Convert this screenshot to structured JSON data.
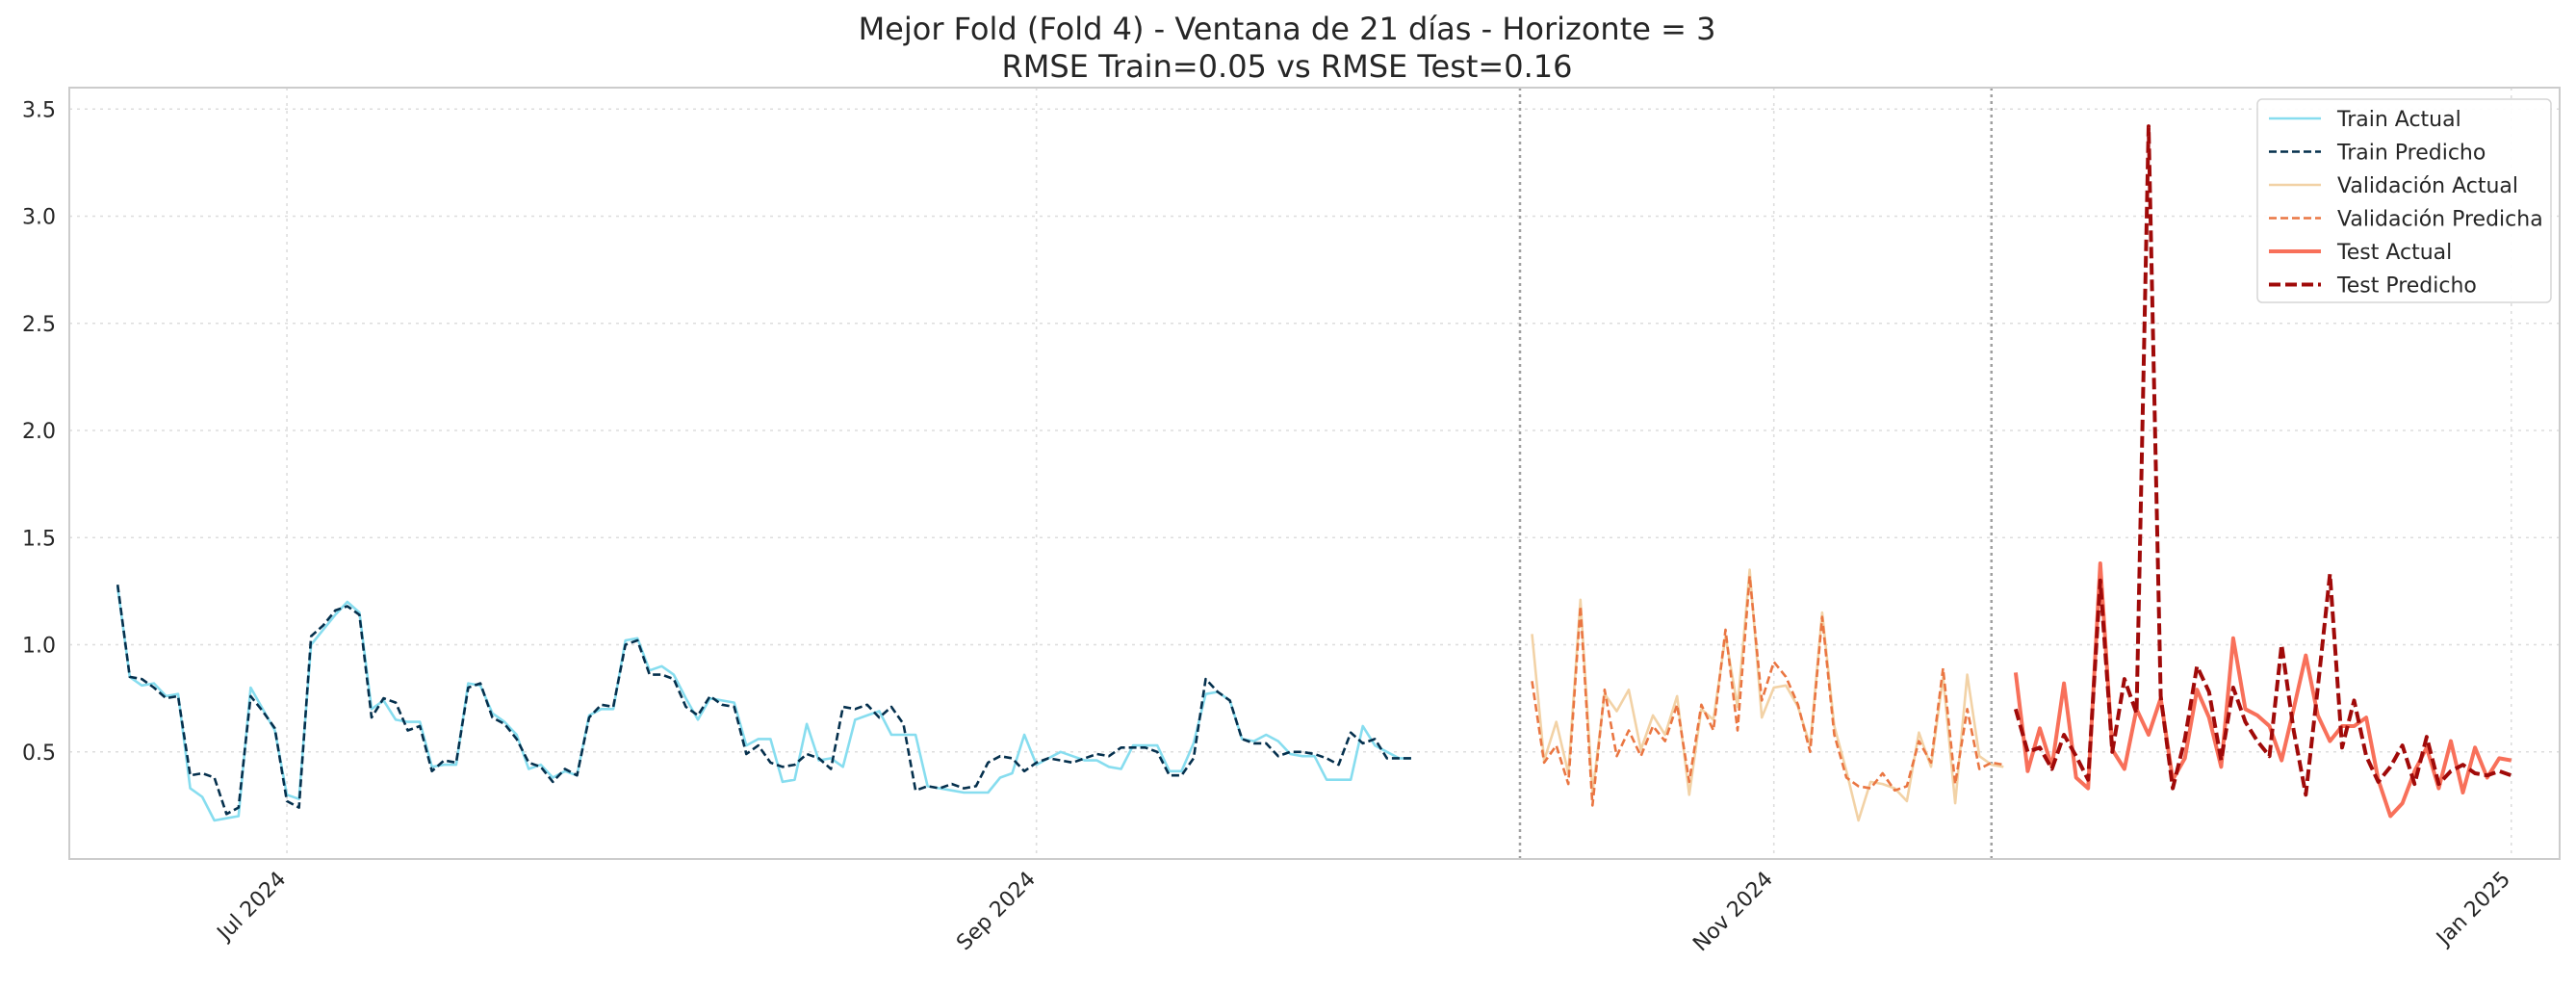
{
  "chart_data": {
    "type": "line",
    "title": "Mejor Fold (Fold 4) - Ventana de 21 días - Horizonte = 3",
    "subtitle": "RMSE Train=0.05 vs RMSE Test=0.16",
    "xlabel": "",
    "ylabel": "",
    "xlim": [
      "2024-06-13",
      "2025-01-05"
    ],
    "ylim": [
      0.0,
      3.6
    ],
    "grid": true,
    "legend_position": "top-right",
    "x_ticks": [
      {
        "date": "2024-07-01",
        "label": "Jul 2024"
      },
      {
        "date": "2024-09-01",
        "label": "Sep 2024"
      },
      {
        "date": "2024-11-01",
        "label": "Nov 2024"
      },
      {
        "date": "2025-01-01",
        "label": "Jan 2025"
      }
    ],
    "y_ticks": [
      {
        "value": 0.5,
        "label": "0.5"
      },
      {
        "value": 1.0,
        "label": "1.0"
      },
      {
        "value": 1.5,
        "label": "1.5"
      },
      {
        "value": 2.0,
        "label": "2.0"
      },
      {
        "value": 2.5,
        "label": "2.5"
      },
      {
        "value": 3.0,
        "label": "3.0"
      },
      {
        "value": 3.5,
        "label": "3.5"
      }
    ],
    "split_markers": [
      "2024-10-11",
      "2024-11-19"
    ],
    "series": [
      {
        "name": "Train Actual",
        "color": "#87ddef",
        "dash": "solid",
        "width": 2.6,
        "start_date": "2024-06-17",
        "values": [
          1.27,
          0.85,
          0.81,
          0.82,
          0.76,
          0.77,
          0.33,
          0.29,
          0.18,
          0.19,
          0.2,
          0.8,
          0.7,
          0.6,
          0.3,
          0.28,
          1.0,
          1.07,
          1.14,
          1.2,
          1.15,
          0.7,
          0.74,
          0.65,
          0.64,
          0.64,
          0.43,
          0.44,
          0.44,
          0.82,
          0.81,
          0.68,
          0.64,
          0.58,
          0.42,
          0.44,
          0.38,
          0.41,
          0.39,
          0.67,
          0.7,
          0.7,
          1.02,
          1.03,
          0.88,
          0.9,
          0.86,
          0.75,
          0.65,
          0.75,
          0.74,
          0.73,
          0.53,
          0.56,
          0.56,
          0.36,
          0.37,
          0.63,
          0.46,
          0.47,
          0.43,
          0.65,
          0.67,
          0.69,
          0.58,
          0.58,
          0.58,
          0.34,
          0.33,
          0.32,
          0.31,
          0.31,
          0.31,
          0.38,
          0.4,
          0.58,
          0.44,
          0.47,
          0.5,
          0.48,
          0.46,
          0.46,
          0.43,
          0.42,
          0.53,
          0.53,
          0.53,
          0.41,
          0.41,
          0.54,
          0.77,
          0.78,
          0.74,
          0.56,
          0.55,
          0.58,
          0.55,
          0.49,
          0.48,
          0.48,
          0.37,
          0.37,
          0.37,
          0.62,
          0.53,
          0.5,
          0.47,
          0.47
        ]
      },
      {
        "name": "Train Predicho",
        "color": "#05304d",
        "dash": "dashed",
        "width": 2.6,
        "start_date": "2024-06-17",
        "values": [
          1.28,
          0.85,
          0.84,
          0.8,
          0.75,
          0.76,
          0.39,
          0.4,
          0.38,
          0.21,
          0.24,
          0.76,
          0.69,
          0.61,
          0.27,
          0.24,
          1.04,
          1.09,
          1.16,
          1.18,
          1.14,
          0.66,
          0.75,
          0.73,
          0.6,
          0.62,
          0.41,
          0.46,
          0.45,
          0.8,
          0.82,
          0.66,
          0.63,
          0.56,
          0.45,
          0.43,
          0.36,
          0.42,
          0.39,
          0.66,
          0.72,
          0.71,
          1.0,
          1.02,
          0.86,
          0.86,
          0.84,
          0.71,
          0.67,
          0.76,
          0.72,
          0.71,
          0.49,
          0.53,
          0.45,
          0.43,
          0.44,
          0.49,
          0.47,
          0.42,
          0.71,
          0.7,
          0.72,
          0.66,
          0.71,
          0.63,
          0.32,
          0.34,
          0.33,
          0.35,
          0.33,
          0.34,
          0.45,
          0.48,
          0.47,
          0.41,
          0.45,
          0.47,
          0.46,
          0.45,
          0.47,
          0.49,
          0.48,
          0.52,
          0.52,
          0.52,
          0.5,
          0.39,
          0.39,
          0.47,
          0.84,
          0.78,
          0.74,
          0.56,
          0.54,
          0.54,
          0.48,
          0.5,
          0.5,
          0.49,
          0.47,
          0.44,
          0.59,
          0.54,
          0.56,
          0.47,
          0.47,
          0.47
        ]
      },
      {
        "name": "Validación Actual",
        "color": "#f2d2a6",
        "dash": "solid",
        "width": 2.6,
        "start_date": "2024-10-12",
        "values": [
          1.05,
          0.46,
          0.64,
          0.4,
          1.21,
          0.31,
          0.77,
          0.69,
          0.79,
          0.51,
          0.67,
          0.58,
          0.76,
          0.3,
          0.7,
          0.65,
          1.04,
          0.71,
          1.35,
          0.66,
          0.8,
          0.81,
          0.71,
          0.53,
          1.15,
          0.62,
          0.41,
          0.18,
          0.36,
          0.35,
          0.33,
          0.27,
          0.59,
          0.43,
          0.85,
          0.26,
          0.86,
          0.48,
          0.44,
          0.43
        ]
      },
      {
        "name": "Validación Predicha",
        "color": "#ea7642",
        "dash": "dashed",
        "width": 2.6,
        "start_date": "2024-10-12",
        "values": [
          0.83,
          0.45,
          0.53,
          0.35,
          1.18,
          0.25,
          0.79,
          0.48,
          0.6,
          0.48,
          0.62,
          0.55,
          0.72,
          0.36,
          0.72,
          0.6,
          1.07,
          0.6,
          1.32,
          0.74,
          0.92,
          0.85,
          0.72,
          0.5,
          1.13,
          0.58,
          0.38,
          0.34,
          0.33,
          0.4,
          0.32,
          0.34,
          0.55,
          0.45,
          0.89,
          0.35,
          0.7,
          0.42,
          0.45,
          0.44
        ]
      },
      {
        "name": "Test Actual",
        "color": "#f8705a",
        "dash": "solid",
        "width": 4.0,
        "start_date": "2024-11-21",
        "values": [
          0.87,
          0.41,
          0.61,
          0.43,
          0.82,
          0.38,
          0.33,
          1.38,
          0.51,
          0.42,
          0.7,
          0.58,
          0.75,
          0.37,
          0.47,
          0.79,
          0.66,
          0.43,
          1.03,
          0.7,
          0.67,
          0.62,
          0.46,
          0.7,
          0.95,
          0.67,
          0.55,
          0.62,
          0.62,
          0.66,
          0.37,
          0.2,
          0.26,
          0.41,
          0.52,
          0.33,
          0.55,
          0.31,
          0.52,
          0.38,
          0.47,
          0.46
        ]
      },
      {
        "name": "Test Predicho",
        "color": "#a00a09",
        "dash": "dashed",
        "width": 4.0,
        "start_date": "2024-11-21",
        "values": [
          0.7,
          0.5,
          0.52,
          0.42,
          0.58,
          0.48,
          0.37,
          1.3,
          0.5,
          0.84,
          0.68,
          3.42,
          0.76,
          0.33,
          0.56,
          0.9,
          0.78,
          0.46,
          0.8,
          0.64,
          0.55,
          0.48,
          1.0,
          0.6,
          0.3,
          0.8,
          1.33,
          0.52,
          0.74,
          0.48,
          0.36,
          0.43,
          0.53,
          0.35,
          0.57,
          0.35,
          0.41,
          0.44,
          0.4,
          0.39,
          0.41,
          0.39
        ]
      }
    ]
  }
}
